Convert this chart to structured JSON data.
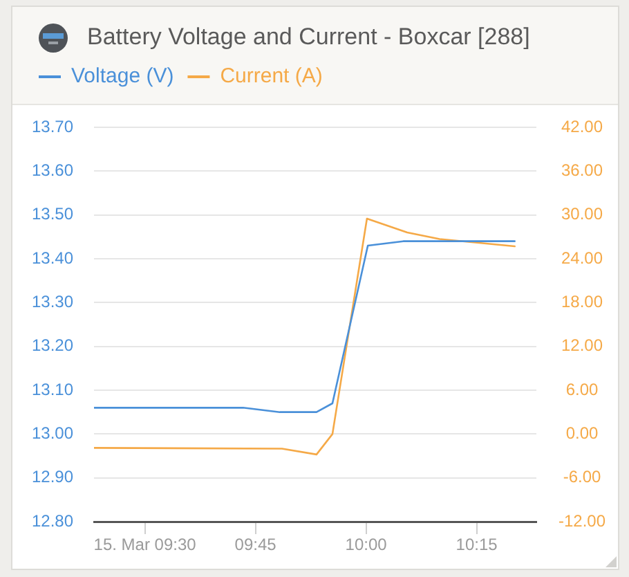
{
  "chart_data": {
    "type": "line",
    "title": "Battery Voltage and Current - Boxcar [288]",
    "series": [
      {
        "name": "Voltage (V)",
        "color": "#4a90d9",
        "x": [
          9.385,
          9.722,
          9.805,
          9.888,
          9.924,
          10.004,
          10.084,
          10.336
        ],
        "values": [
          13.06,
          13.06,
          13.05,
          13.05,
          13.07,
          13.43,
          13.44,
          13.44
        ]
      },
      {
        "name": "Current (A)",
        "color": "#f5a947",
        "axis": "y2",
        "x": [
          9.385,
          9.81,
          9.888,
          9.924,
          10.002,
          10.093,
          10.166,
          10.336
        ],
        "values": [
          -1.9,
          -2.0,
          -2.8,
          0.0,
          29.5,
          27.6,
          26.7,
          25.7
        ]
      }
    ],
    "xlim": [
      9.385,
      10.385
    ],
    "xticks": [
      {
        "value": 9.5,
        "label": "15. Mar 09:30"
      },
      {
        "value": 9.75,
        "label": "09:45"
      },
      {
        "value": 10,
        "label": "10:00"
      },
      {
        "value": 10.25,
        "label": "10:15"
      }
    ],
    "ylim": [
      12.8,
      13.7
    ],
    "yticks": [
      {
        "value": 12.8,
        "label": "12.80"
      },
      {
        "value": 12.9,
        "label": "12.90"
      },
      {
        "value": 13,
        "label": "13.00"
      },
      {
        "value": 13.1,
        "label": "13.10"
      },
      {
        "value": 13.2,
        "label": "13.20"
      },
      {
        "value": 13.3,
        "label": "13.30"
      },
      {
        "value": 13.4,
        "label": "13.40"
      },
      {
        "value": 13.5,
        "label": "13.50"
      },
      {
        "value": 13.6,
        "label": "13.60"
      },
      {
        "value": 13.7,
        "label": "13.70"
      }
    ],
    "y2lim": [
      -12,
      42
    ],
    "y2ticks": [
      {
        "value": -12,
        "label": "-12.00"
      },
      {
        "value": -6,
        "label": "-6.00"
      },
      {
        "value": 0,
        "label": "0.00"
      },
      {
        "value": 6,
        "label": "6.00"
      },
      {
        "value": 12,
        "label": "12.00"
      },
      {
        "value": 18,
        "label": "18.00"
      },
      {
        "value": 24,
        "label": "24.00"
      },
      {
        "value": 30,
        "label": "30.00"
      },
      {
        "value": 36,
        "label": "36.00"
      },
      {
        "value": 42,
        "label": "42.00"
      }
    ],
    "grid": "y",
    "legend": "top left",
    "marker": "none",
    "line_style": "solid"
  }
}
